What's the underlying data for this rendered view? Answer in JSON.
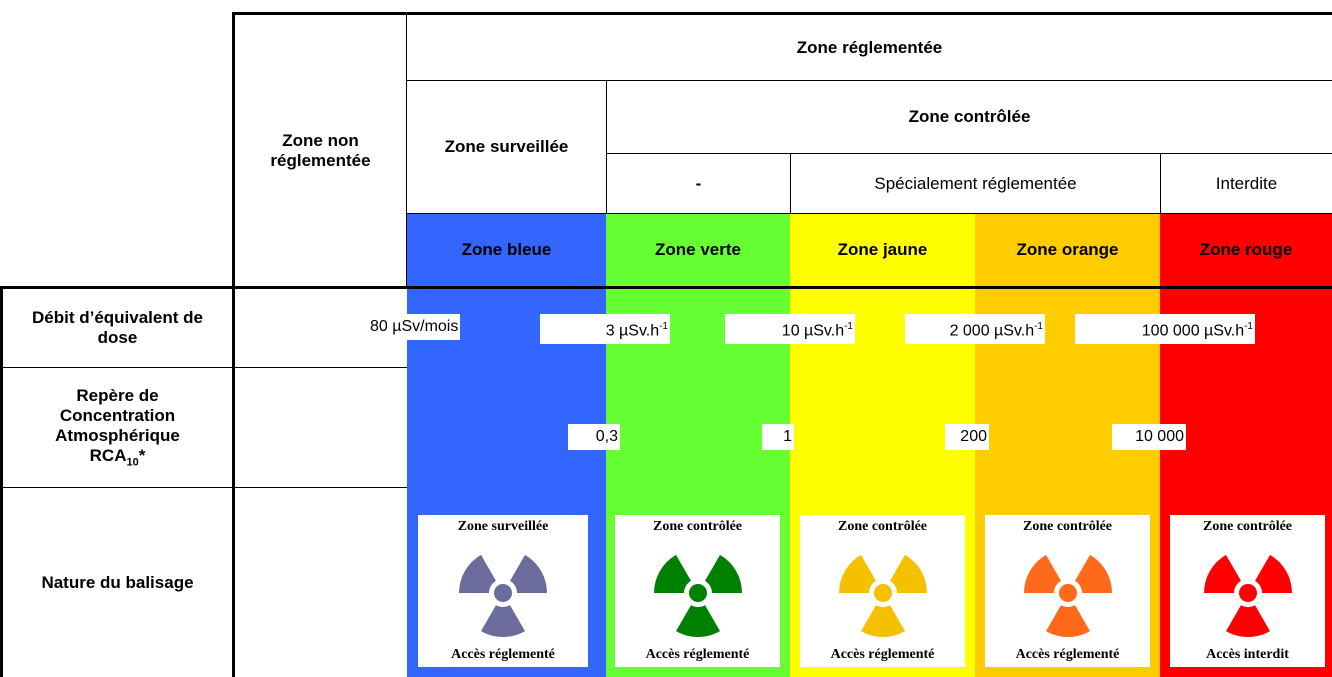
{
  "header": {
    "regulated": "Zone réglementée",
    "non_regulated": "Zone non réglementée",
    "supervised": "Zone surveillée",
    "controlled": "Zone contrôlée",
    "controlled_sub": [
      "-",
      "Spécialement réglementée",
      "Interdite"
    ]
  },
  "zones": [
    "Zone bleue",
    "Zone verte",
    "Zone jaune",
    "Zone orange",
    "Zone rouge"
  ],
  "rows": [
    {
      "label": "Débit d’équivalent de dose",
      "thresholds": [
        {
          "text": "80 µSv/mois"
        },
        {
          "text": "3 µSv.h",
          "exponent": "-1"
        },
        {
          "text": "10 µSv.h",
          "exponent": "-1"
        },
        {
          "text": "2 000 µSv.h",
          "exponent": "-1"
        },
        {
          "text": "100 000 µSv.h",
          "exponent": "-1"
        }
      ]
    },
    {
      "label": "Repère de Concentration Atmosphérique",
      "symbol": "RCA",
      "subscript": "10",
      "suffix": "*",
      "thresholds": [
        "0,3",
        "1",
        "200",
        "10 000"
      ]
    },
    {
      "label": "Nature du balisage",
      "signs": [
        {
          "title": "Zone surveillée",
          "footer": "Accès réglementé"
        },
        {
          "title": "Zone contrôlée",
          "footer": "Accès réglementé"
        },
        {
          "title": "Zone contrôlée",
          "footer": "Accès réglementé"
        },
        {
          "title": "Zone contrôlée",
          "footer": "Accès réglementé"
        },
        {
          "title": "Zone contrôlée",
          "footer": "Accès interdit"
        }
      ]
    }
  ]
}
